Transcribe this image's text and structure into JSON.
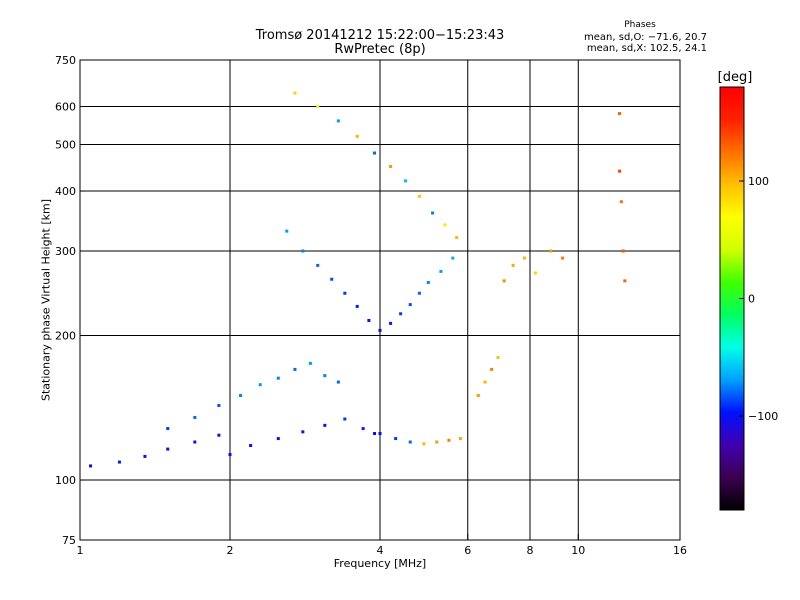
{
  "chart_data": {
    "type": "scatter",
    "title": "Tromsø 20141212 15:22:00−15:23:43",
    "subtitle": "RwPretec (8p)",
    "annotation_header": "Phases",
    "annotations": [
      "mean, sd,O: −71.6, 20.7",
      "mean, sd,X: 102.5, 24.1"
    ],
    "xlabel": "Frequency [MHz]",
    "ylabel": "Stationary phase Virtual Height [km]",
    "x_scale": "log",
    "y_scale": "log",
    "xlim": [
      1,
      16
    ],
    "ylim": [
      75,
      750
    ],
    "x_ticks": [
      1,
      2,
      4,
      8,
      16
    ],
    "x_tick_labels": [
      "1",
      "2",
      "4",
      "6",
      "8",
      "10",
      "16"
    ],
    "x_tick_label_values": [
      1,
      2,
      4,
      6,
      8,
      10,
      16
    ],
    "y_tick_labels": [
      "75",
      "100",
      "200",
      "300",
      "400",
      "500",
      "600",
      "750"
    ],
    "y_tick_label_values": [
      75,
      100,
      200,
      300,
      400,
      500,
      600,
      750
    ],
    "grid_x": [
      2,
      4,
      6,
      8,
      10
    ],
    "grid_y": [
      100,
      200,
      300,
      400,
      500,
      600
    ],
    "grid": true,
    "colorbar": {
      "label": "[deg]",
      "range": [
        -180,
        180
      ],
      "tick_labels": [
        "100",
        "0",
        "−100"
      ],
      "tick_values": [
        100,
        0,
        -100
      ],
      "colors": [
        "#000000",
        "#3c0050",
        "#4000b0",
        "#0010ff",
        "#00a0ff",
        "#00ffe8",
        "#00ff60",
        "#40ff00",
        "#d0ff00",
        "#ffff00",
        "#ffc000",
        "#ff7000",
        "#ff2000",
        "#ff0000"
      ]
    },
    "series": [
      {
        "x": [
          1.05,
          1.2,
          1.35,
          1.5,
          1.7,
          1.9,
          2.0,
          2.2,
          2.5,
          2.8,
          3.1,
          3.4,
          3.7,
          3.9
        ],
        "y": [
          107,
          109,
          112,
          116,
          120,
          124,
          113,
          118,
          122,
          126,
          130,
          134,
          128,
          125
        ],
        "phase": [
          -100,
          -95,
          -100,
          -105,
          -100,
          -110,
          -100,
          -100,
          -105,
          -95,
          -100,
          -90,
          -95,
          -100
        ]
      },
      {
        "x": [
          1.5,
          1.7,
          1.9,
          2.1,
          2.3,
          2.5,
          2.7,
          2.9,
          3.1,
          3.3
        ],
        "y": [
          128,
          135,
          143,
          150,
          158,
          163,
          170,
          175,
          165,
          160
        ],
        "phase": [
          -90,
          -80,
          -85,
          -75,
          -70,
          -75,
          -80,
          -70,
          -75,
          -80
        ]
      },
      {
        "x": [
          4.0,
          4.3,
          4.6,
          4.9,
          5.2,
          5.5,
          5.8
        ],
        "y": [
          125,
          122,
          120,
          119,
          120,
          121,
          122
        ],
        "phase": [
          -100,
          -90,
          -80,
          100,
          110,
          120,
          105
        ]
      },
      {
        "x": [
          2.6,
          2.8,
          3.0,
          3.2,
          3.4,
          3.6,
          3.8,
          4.0,
          4.2,
          4.4,
          4.6,
          4.8,
          5.0,
          5.3,
          5.6
        ],
        "y": [
          330,
          300,
          280,
          262,
          245,
          230,
          215,
          205,
          212,
          222,
          232,
          245,
          258,
          272,
          290
        ],
        "phase": [
          -70,
          -75,
          -80,
          -85,
          -90,
          -95,
          -100,
          -100,
          -95,
          -90,
          -85,
          -80,
          -75,
          -70,
          -65
        ]
      },
      {
        "x": [
          2.7,
          3.0,
          3.3,
          3.6,
          3.9,
          4.2,
          4.5,
          4.8,
          5.1,
          5.4,
          5.7
        ],
        "y": [
          640,
          600,
          560,
          520,
          480,
          450,
          420,
          390,
          360,
          340,
          320
        ],
        "phase": [
          90,
          60,
          -70,
          100,
          -80,
          110,
          -60,
          95,
          -75,
          80,
          100
        ]
      },
      {
        "x": [
          6.3,
          6.5,
          6.7,
          6.9,
          7.1,
          7.4,
          7.8,
          8.2,
          8.8,
          9.3
        ],
        "y": [
          150,
          160,
          170,
          180,
          260,
          280,
          290,
          270,
          300,
          290
        ],
        "phase": [
          110,
          100,
          120,
          95,
          115,
          105,
          100,
          90,
          110,
          120
        ]
      },
      {
        "x": [
          12.1,
          12.1,
          12.2,
          12.3,
          12.4
        ],
        "y": [
          580,
          440,
          380,
          300,
          260
        ],
        "phase": [
          130,
          140,
          125,
          135,
          130
        ]
      }
    ]
  }
}
